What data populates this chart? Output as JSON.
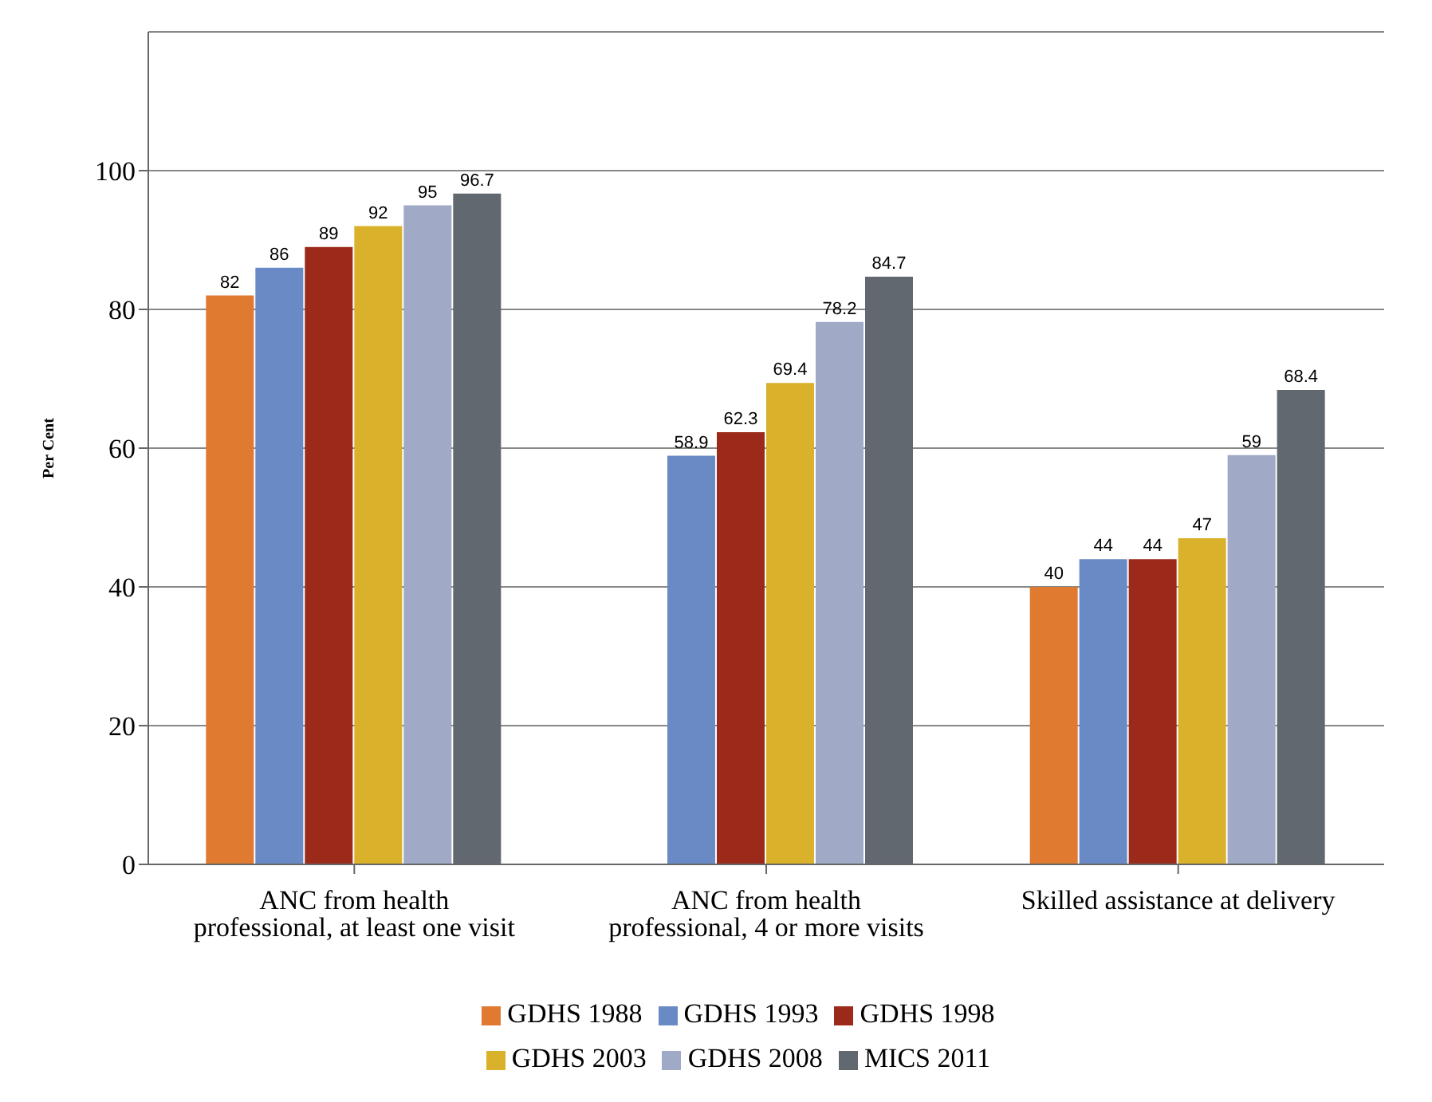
{
  "chart_data": {
    "type": "bar",
    "ylabel": "Per Cent",
    "categories": [
      "ANC from health professional, at least one visit",
      "ANC from health professional, 4 or more visits",
      "Skilled assistance at delivery"
    ],
    "series": [
      {
        "name": "GDHS 1988",
        "color": "#e07a30",
        "values": [
          82,
          null,
          40
        ]
      },
      {
        "name": "GDHS 1993",
        "color": "#6a8ac6",
        "values": [
          86,
          58.9,
          44
        ]
      },
      {
        "name": "GDHS 1998",
        "color": "#9b2a1a",
        "values": [
          89,
          62.3,
          44
        ]
      },
      {
        "name": "GDHS 2003",
        "color": "#d9b12a",
        "values": [
          92,
          69.4,
          47
        ]
      },
      {
        "name": "GDHS 2008",
        "color": "#a0aac6",
        "values": [
          95,
          78.2,
          59
        ]
      },
      {
        "name": "MICS 2011",
        "color": "#626870",
        "values": [
          96.7,
          84.7,
          68.4
        ]
      }
    ],
    "ylim": [
      0,
      120
    ],
    "yticks": [
      0,
      20,
      40,
      60,
      80,
      100
    ],
    "grid": "y",
    "legend": "bottom",
    "data_labels": true
  }
}
